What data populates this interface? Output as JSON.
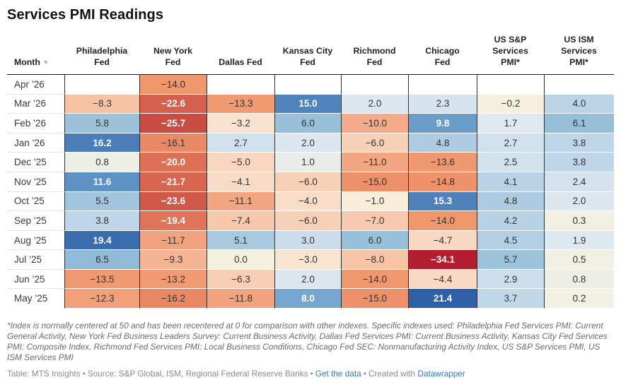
{
  "title": "Services PMI Readings",
  "chart_data": {
    "type": "table",
    "subtype": "heatmap",
    "columns": [
      "Month",
      "Philadelphia\nFed",
      "New York\nFed",
      "Dallas Fed",
      "Kansas City\nFed",
      "Richmond\nFed",
      "Chicago\nFed",
      "US S&P\nServices\nPMI*",
      "US ISM\nServices\nPMI*"
    ],
    "sorted_column": "Month",
    "sort_icon": "triangle-down",
    "rows": [
      {
        "month": "Apr ’26",
        "values": [
          null,
          -14.0,
          null,
          null,
          null,
          null,
          null,
          null
        ]
      },
      {
        "month": "Mar ’26",
        "values": [
          -8.3,
          -22.6,
          -13.3,
          15.0,
          2.0,
          2.3,
          -0.2,
          4.0
        ]
      },
      {
        "month": "Feb ’26",
        "values": [
          5.8,
          -25.7,
          -3.2,
          6.0,
          -10.0,
          9.8,
          1.7,
          6.1
        ]
      },
      {
        "month": "Jan ’26",
        "values": [
          16.2,
          -16.1,
          2.7,
          2.0,
          -6.0,
          4.8,
          2.7,
          3.8
        ]
      },
      {
        "month": "Dec ’25",
        "values": [
          0.8,
          -20.0,
          -5.0,
          1.0,
          -11.0,
          -13.6,
          2.5,
          3.8
        ]
      },
      {
        "month": "Nov ’25",
        "values": [
          11.6,
          -21.7,
          -4.1,
          -6.0,
          -15.0,
          -14.8,
          4.1,
          2.4
        ]
      },
      {
        "month": "Oct ’25",
        "values": [
          5.5,
          -23.6,
          -11.1,
          -4.0,
          -1.0,
          15.3,
          4.8,
          2.0
        ]
      },
      {
        "month": "Sep ’25",
        "values": [
          3.8,
          -19.4,
          -7.4,
          -6.0,
          -7.0,
          -14.0,
          4.2,
          0.3
        ]
      },
      {
        "month": "Aug ’25",
        "values": [
          19.4,
          -11.7,
          5.1,
          3.0,
          6.0,
          -4.7,
          4.5,
          1.9
        ]
      },
      {
        "month": "Jul ’25",
        "values": [
          6.5,
          -9.3,
          0.0,
          -3.0,
          -8.0,
          -34.1,
          5.7,
          0.5
        ]
      },
      {
        "month": "Jun ’25",
        "values": [
          -13.5,
          -13.2,
          -6.3,
          2.0,
          -14.0,
          -4.4,
          2.9,
          0.8
        ]
      },
      {
        "month": "May ’25",
        "values": [
          -12.3,
          -16.2,
          -11.8,
          8.0,
          -15.0,
          21.4,
          3.7,
          0.2
        ]
      }
    ],
    "value_format": "one-decimal, minus sign U+2212",
    "heatmap": {
      "diverging_center": 0,
      "stops": [
        {
          "v": -34.1,
          "c": "#b21d2f"
        },
        {
          "v": -25.7,
          "c": "#ca4c43"
        },
        {
          "v": -19.4,
          "c": "#e07458"
        },
        {
          "v": -14.0,
          "c": "#ef976d"
        },
        {
          "v": -10.0,
          "c": "#f4ab89"
        },
        {
          "v": -8.3,
          "c": "#f6c3a4"
        },
        {
          "v": -5.0,
          "c": "#f8d6c0"
        },
        {
          "v": -3.0,
          "c": "#f9e3d1"
        },
        {
          "v": -1.0,
          "c": "#f8eeda"
        },
        {
          "v": 0.0,
          "c": "#f5f1df"
        },
        {
          "v": 0.8,
          "c": "#edefe7"
        },
        {
          "v": 1.2,
          "c": "#e6ecec"
        },
        {
          "v": 2.0,
          "c": "#dce7f0"
        },
        {
          "v": 4.0,
          "c": "#bbd4e6"
        },
        {
          "v": 6.0,
          "c": "#98c0d9"
        },
        {
          "v": 8.0,
          "c": "#77a7ce"
        },
        {
          "v": 11.6,
          "c": "#5f92c4"
        },
        {
          "v": 16.2,
          "c": "#4b7eb8"
        },
        {
          "v": 21.4,
          "c": "#2e60a8"
        }
      ],
      "white_text_when": {
        "at_or_above": 8,
        "at_or_below": -19
      }
    }
  },
  "footnote": "*Index is normally centered at 50 and has been recentered at 0 for comparison with other indexes. Specific indexes used: Philadelphia Fed Services PMI: Current General Activity, New York Fed Business Leaders Survey: Current Business Activity, Dallas Fed Services PMI: Current Business Activity, Kansas City Fed Services PMI: Composite Index, Richmond Fed Services PMI: Local Business Conditions, Chicago Fed SEC: Nonmanufacturing Activity Index, US S&P Services PMI, US ISM Services PMI",
  "footer": {
    "table_credit": "Table: MTS Insights",
    "source_credit": "Source: S&P Global, ISM, Regional Federal Reserve Banks",
    "get_data_label": "Get the data",
    "created_with": "Created with",
    "tool_label": "Datawrapper",
    "separator": "•"
  },
  "colors": {
    "link": "#2d7bc0",
    "header_rule": "#1a1a1a",
    "column_rule": "#2f2f2f",
    "row_separator": "#e4e4e4",
    "negative_extreme": "#b21d2f",
    "positive_extreme": "#2e60a8",
    "center_cream": "#f5f1df"
  }
}
